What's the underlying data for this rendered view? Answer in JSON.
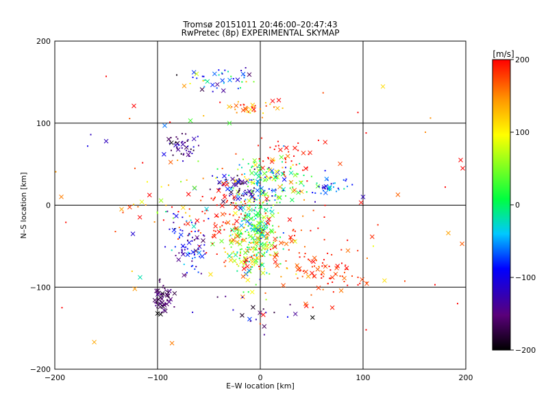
{
  "chart_data": {
    "type": "scatter",
    "title": "Tromsø 20151011 20:46:00–20:47:43",
    "subtitle": "RwPretec (8p) EXPERIMENTAL SKYMAP",
    "xlabel": "E–W location [km]",
    "ylabel": "N–S location [km]",
    "xlim": [
      -200,
      200
    ],
    "ylim": [
      -200,
      200
    ],
    "x_ticks": [
      -200,
      -100,
      0,
      100,
      200
    ],
    "y_ticks": [
      -200,
      -100,
      0,
      100,
      200
    ],
    "grid": true,
    "colorbar": {
      "label": "[m/s]",
      "range": [
        -200,
        200
      ],
      "ticks": [
        200,
        100,
        0,
        -100,
        -200
      ],
      "colormap": [
        "#000000",
        "#5a007a",
        "#0000ff",
        "#00c8ff",
        "#00ff40",
        "#ffff00",
        "#ff9900",
        "#ff0000"
      ]
    },
    "clusters": [
      {
        "cx": -5,
        "cy": -30,
        "sx": 12,
        "sy": 28,
        "n": 260,
        "vmean": 20,
        "vspread": 90
      },
      {
        "cx": 5,
        "cy": 30,
        "sx": 22,
        "sy": 14,
        "n": 150,
        "vmean": 0,
        "vspread": 110
      },
      {
        "cx": -20,
        "cy": 18,
        "sx": 14,
        "sy": 10,
        "n": 60,
        "vmean": -150,
        "vspread": 50
      },
      {
        "cx": -10,
        "cy": -55,
        "sx": 16,
        "sy": 14,
        "n": 90,
        "vmean": 100,
        "vspread": 90
      },
      {
        "cx": -70,
        "cy": -50,
        "sx": 10,
        "sy": 25,
        "n": 80,
        "vmean": -110,
        "vspread": 60
      },
      {
        "cx": -95,
        "cy": -115,
        "sx": 5,
        "sy": 9,
        "n": 60,
        "vmean": -160,
        "vspread": 30
      },
      {
        "cx": -75,
        "cy": 72,
        "sx": 8,
        "sy": 8,
        "n": 45,
        "vmean": -150,
        "vspread": 50
      },
      {
        "cx": -40,
        "cy": 155,
        "sx": 18,
        "sy": 10,
        "n": 40,
        "vmean": -80,
        "vspread": 100
      },
      {
        "cx": -10,
        "cy": 118,
        "sx": 14,
        "sy": 5,
        "n": 35,
        "vmean": 150,
        "vspread": 50
      },
      {
        "cx": 65,
        "cy": -80,
        "sx": 18,
        "sy": 15,
        "n": 60,
        "vmean": 185,
        "vspread": 25
      },
      {
        "cx": 30,
        "cy": -60,
        "sx": 22,
        "sy": 30,
        "n": 60,
        "vmean": 180,
        "vspread": 30
      },
      {
        "cx": 70,
        "cy": 20,
        "sx": 12,
        "sy": 8,
        "n": 35,
        "vmean": -80,
        "vspread": 60
      },
      {
        "cx": -35,
        "cy": -15,
        "sx": 18,
        "sy": 20,
        "n": 70,
        "vmean": 190,
        "vspread": 20
      },
      {
        "cx": -95,
        "cy": 5,
        "sx": 18,
        "sy": 25,
        "n": 35,
        "vmean": 130,
        "vspread": 100
      },
      {
        "cx": 30,
        "cy": 55,
        "sx": 18,
        "sy": 15,
        "n": 35,
        "vmean": 195,
        "vspread": 10
      },
      {
        "cx": 0,
        "cy": -130,
        "sx": 30,
        "sy": 12,
        "n": 20,
        "vmean": -150,
        "vspread": 60
      },
      {
        "cx": 0,
        "cy": 0,
        "sx": 110,
        "sy": 90,
        "n": 60,
        "vmean": 160,
        "vspread": 60
      }
    ],
    "points": [
      {
        "x": -100,
        "y": -132,
        "v": -200,
        "m": "x"
      },
      {
        "x": -97,
        "y": -133,
        "v": -200,
        "m": "x"
      },
      {
        "x": -150,
        "y": 78,
        "v": -120,
        "m": "x"
      },
      {
        "x": -123,
        "y": 121,
        "v": 200,
        "m": "x"
      },
      {
        "x": -135,
        "y": -5,
        "v": 140,
        "m": "x"
      },
      {
        "x": -124,
        "y": -35,
        "v": -110,
        "m": "x"
      },
      {
        "x": -117,
        "y": -88,
        "v": -20,
        "m": "x"
      },
      {
        "x": 100,
        "y": 10,
        "v": -120,
        "m": "x"
      },
      {
        "x": 195,
        "y": 55,
        "v": 200,
        "m": "x"
      },
      {
        "x": 197,
        "y": 45,
        "v": 200,
        "m": "x"
      },
      {
        "x": 183,
        "y": -34,
        "v": 140,
        "m": "x"
      },
      {
        "x": 170,
        "y": -97,
        "v": 200,
        "m": "."
      },
      {
        "x": 192,
        "y": -120,
        "v": 200,
        "m": "."
      },
      {
        "x": -193,
        "y": -125,
        "v": 200,
        "m": "."
      },
      {
        "x": -150,
        "y": 157,
        "v": 200,
        "m": "."
      },
      {
        "x": -165,
        "y": 86,
        "v": -120,
        "m": "."
      },
      {
        "x": -168,
        "y": 72,
        "v": -100,
        "m": "."
      },
      {
        "x": 103,
        "y": 88,
        "v": 200,
        "m": "."
      },
      {
        "x": 95,
        "y": 113,
        "v": 200,
        "m": "."
      },
      {
        "x": 110,
        "y": -50,
        "v": 90,
        "m": "."
      },
      {
        "x": 103,
        "y": -152,
        "v": 200,
        "m": "."
      },
      {
        "x": 180,
        "y": 22,
        "v": 200,
        "m": "."
      },
      {
        "x": 12,
        "y": 127,
        "v": 200,
        "m": "x"
      },
      {
        "x": 18,
        "y": 128,
        "v": 200,
        "m": "x"
      },
      {
        "x": -62,
        "y": 160,
        "v": 80,
        "m": "x"
      },
      {
        "x": -30,
        "y": 100,
        "v": 30,
        "m": "x"
      },
      {
        "x": -93,
        "y": 97,
        "v": -60,
        "m": "x"
      },
      {
        "x": -68,
        "y": 103,
        "v": 30,
        "m": "x"
      }
    ]
  }
}
